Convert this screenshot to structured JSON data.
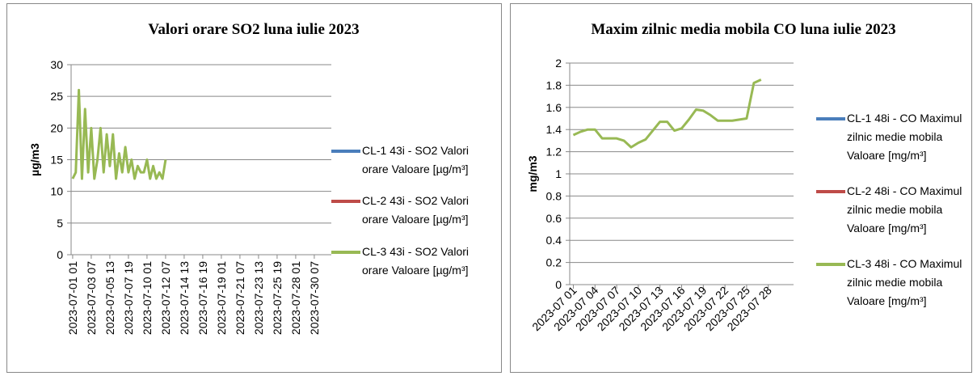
{
  "chart_data": [
    {
      "type": "line",
      "title": "Valori orare SO2 luna iulie 2023",
      "y_label": "µg/m3",
      "categories": [
        "2023-07-01 01",
        null,
        null,
        null,
        null,
        null,
        "2023-07-03 07",
        null,
        null,
        null,
        null,
        null,
        "2023-07-05 13",
        null,
        null,
        null,
        null,
        null,
        "2023-07-07 19",
        null,
        null,
        null,
        null,
        null,
        "2023-07-10 01",
        null,
        null,
        null,
        null,
        null,
        "2023-07-12 07",
        null,
        null,
        null,
        null,
        null,
        "2023-07-14 13",
        null,
        null,
        null,
        null,
        null,
        "2023-07-16 19",
        null,
        null,
        null,
        null,
        null,
        "2023-07-19 01",
        null,
        null,
        null,
        null,
        null,
        "2023-07-21 07",
        null,
        null,
        null,
        null,
        null,
        "2023-07-23 13",
        null,
        null,
        null,
        null,
        null,
        "2023-07-25 19",
        null,
        null,
        null,
        null,
        null,
        "2023-07-28 01",
        null,
        null,
        null,
        null,
        null,
        "2023-07-30 07",
        null,
        null,
        null,
        null,
        null
      ],
      "series": [
        {
          "name": "CL-1 43i - SO2 Valori orare Valoare [µg/m³]",
          "color": "#4a7ebb",
          "values": [
            null,
            null,
            null,
            null,
            null,
            null,
            null,
            null,
            null,
            null,
            null,
            null,
            null,
            null,
            null,
            null,
            null,
            null,
            null,
            null,
            null,
            null,
            null,
            null,
            null,
            null,
            null,
            null,
            null,
            null,
            null,
            null,
            null,
            null,
            null,
            null,
            null,
            null,
            null,
            null,
            null,
            null,
            null,
            null,
            null,
            null,
            null,
            null,
            null,
            null,
            null,
            null,
            null,
            null,
            null,
            null,
            null,
            null,
            null,
            null,
            null,
            null,
            null,
            null,
            null,
            null,
            null,
            null,
            null,
            null,
            null,
            null,
            null,
            null,
            null,
            null,
            null,
            null,
            null,
            null,
            null,
            null,
            null,
            null
          ]
        },
        {
          "name": "CL-2 43i - SO2 Valori orare Valoare [µg/m³]",
          "color": "#be4b48",
          "values": [
            null,
            null,
            null,
            null,
            null,
            null,
            null,
            null,
            null,
            null,
            null,
            null,
            null,
            null,
            null,
            null,
            null,
            null,
            null,
            null,
            null,
            null,
            null,
            null,
            null,
            null,
            null,
            null,
            null,
            null,
            null,
            null,
            null,
            null,
            null,
            null,
            null,
            null,
            null,
            null,
            null,
            null,
            null,
            null,
            null,
            null,
            null,
            null,
            null,
            null,
            null,
            null,
            null,
            null,
            null,
            null,
            null,
            null,
            null,
            null,
            null,
            null,
            null,
            null,
            null,
            null,
            null,
            null,
            null,
            null,
            null,
            null,
            null,
            null,
            null,
            null,
            null,
            null,
            null,
            null,
            null,
            null,
            null,
            null
          ]
        },
        {
          "name": "CL-3 43i - SO2 Valori orare Valoare [µg/m³]",
          "color": "#98b954",
          "values": [
            12,
            13,
            26,
            12,
            23,
            13,
            20,
            12,
            15,
            20,
            13,
            19,
            14,
            19,
            12,
            16,
            13,
            17,
            13,
            15,
            12,
            14,
            13,
            13,
            15,
            12,
            14,
            12,
            13,
            12,
            15,
            null,
            null,
            null,
            null,
            null,
            null,
            null,
            null,
            null,
            null,
            null,
            null,
            null,
            null,
            null,
            null,
            null,
            null,
            null,
            null,
            null,
            null,
            null,
            null,
            null,
            null,
            null,
            null,
            null,
            null,
            null,
            null,
            null,
            null,
            null,
            null,
            null,
            null,
            null,
            null,
            null,
            null,
            null,
            null,
            null,
            null,
            null,
            null,
            null,
            null,
            null,
            null,
            null
          ]
        }
      ],
      "ylim": [
        0,
        30
      ],
      "yticks": [
        0,
        5,
        10,
        15,
        20,
        25,
        30
      ],
      "grid": true
    },
    {
      "type": "line",
      "title": "Maxim zilnic media mobila CO luna iulie 2023",
      "y_label": "mg/m3",
      "categories": [
        "2023-07 01",
        null,
        null,
        "2023-07 04",
        null,
        null,
        "2023-07 07",
        null,
        null,
        "2023-07 10",
        null,
        null,
        "2023-07 13",
        null,
        null,
        "2023-07 16",
        null,
        null,
        "2023-07 19",
        null,
        null,
        "2023-07 22",
        null,
        null,
        "2023-07 25",
        null,
        null,
        "2023-07 28",
        null,
        null,
        null
      ],
      "series": [
        {
          "name": "CL-1 48i - CO Maximul zilnic medie mobila Valoare [mg/m³]",
          "color": "#4a7ebb",
          "values": [
            null,
            null,
            null,
            null,
            null,
            null,
            null,
            null,
            null,
            null,
            null,
            null,
            null,
            null,
            null,
            null,
            null,
            null,
            null,
            null,
            null,
            null,
            null,
            null,
            null,
            null,
            null,
            null,
            null,
            null,
            null
          ]
        },
        {
          "name": "CL-2 48i - CO Maximul zilnic medie mobila Valoare [mg/m³]",
          "color": "#be4b48",
          "values": [
            null,
            null,
            null,
            null,
            null,
            null,
            null,
            null,
            null,
            null,
            null,
            null,
            null,
            null,
            null,
            null,
            null,
            null,
            null,
            null,
            null,
            null,
            null,
            null,
            null,
            null,
            null,
            null,
            null,
            null,
            null
          ]
        },
        {
          "name": "CL-3 48i - CO Maximul zilnic medie mobila Valoare [mg/m³]",
          "color": "#98b954",
          "values": [
            1.35,
            1.38,
            1.4,
            1.4,
            1.32,
            1.32,
            1.32,
            1.3,
            1.24,
            1.28,
            1.31,
            1.39,
            1.47,
            1.47,
            1.39,
            1.41,
            1.49,
            1.58,
            1.57,
            1.53,
            1.48,
            1.48,
            1.48,
            1.49,
            1.5,
            1.82,
            1.85,
            null,
            null,
            null,
            null
          ]
        }
      ],
      "ylim": [
        0,
        2
      ],
      "yticks": [
        0,
        0.2,
        0.4,
        0.6,
        0.8,
        1,
        1.2,
        1.4,
        1.6,
        1.8,
        2
      ],
      "grid": true
    }
  ]
}
